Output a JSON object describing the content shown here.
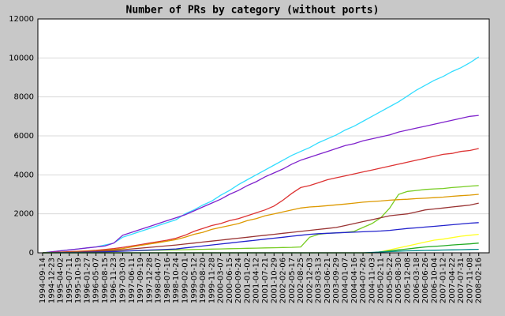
{
  "chart_data": {
    "type": "line",
    "title": "Number of PRs by category (without ports)",
    "categories": [
      "1994-09-14",
      "1994-12-23",
      "1995-04-02",
      "1995-07-11",
      "1995-10-19",
      "1996-01-27",
      "1996-05-07",
      "1996-08-15",
      "1996-11-23",
      "1997-03-03",
      "1997-06-11",
      "1997-09-19",
      "1997-12-28",
      "1998-04-07",
      "1998-07-16",
      "1998-10-24",
      "1999-02-01",
      "1999-05-12",
      "1999-08-20",
      "1999-11-28",
      "2000-03-07",
      "2000-06-15",
      "2000-09-24",
      "2001-01-02",
      "2001-04-12",
      "2001-07-21",
      "2001-10-29",
      "2002-02-06",
      "2002-05-17",
      "2002-08-25",
      "2002-12-03",
      "2003-03-13",
      "2003-06-21",
      "2003-09-29",
      "2004-01-07",
      "2004-04-16",
      "2004-07-26",
      "2004-11-03",
      "2005-02-11",
      "2005-05-22",
      "2005-08-30",
      "2005-12-08",
      "2006-03-18",
      "2006-06-26",
      "2006-10-04",
      "2007-01-12",
      "2007-04-22",
      "2007-07-31",
      "2007-11-08",
      "2008-02-16"
    ],
    "series": [
      {
        "color": "#33ddff",
        "values": [
          0,
          50,
          100,
          150,
          200,
          250,
          300,
          400,
          500,
          800,
          950,
          1100,
          1250,
          1400,
          1550,
          1700,
          2000,
          2200,
          2450,
          2650,
          2950,
          3200,
          3500,
          3750,
          4000,
          4250,
          4500,
          4750,
          5000,
          5200,
          5400,
          5650,
          5850,
          6050,
          6300,
          6500,
          6750,
          7000,
          7250,
          7500,
          7750,
          8050,
          8350,
          8600,
          8850,
          9050,
          9300,
          9500,
          9750,
          10050
        ]
      },
      {
        "color": "#7f22cc",
        "values": [
          0,
          50,
          100,
          150,
          200,
          250,
          300,
          350,
          500,
          900,
          1050,
          1200,
          1350,
          1500,
          1650,
          1800,
          1950,
          2150,
          2350,
          2550,
          2750,
          3000,
          3200,
          3450,
          3650,
          3900,
          4100,
          4300,
          4550,
          4750,
          4900,
          5050,
          5200,
          5350,
          5500,
          5600,
          5750,
          5850,
          5950,
          6050,
          6200,
          6300,
          6400,
          6500,
          6600,
          6700,
          6800,
          6900,
          7000,
          7050
        ]
      },
      {
        "color": "#dd3333",
        "values": [
          0,
          20,
          40,
          60,
          80,
          100,
          130,
          170,
          220,
          280,
          350,
          420,
          500,
          570,
          650,
          750,
          900,
          1100,
          1250,
          1400,
          1500,
          1650,
          1750,
          1900,
          2050,
          2200,
          2400,
          2700,
          3050,
          3350,
          3450,
          3600,
          3750,
          3850,
          3950,
          4050,
          4150,
          4250,
          4350,
          4450,
          4550,
          4650,
          4750,
          4850,
          4950,
          5050,
          5100,
          5200,
          5250,
          5350
        ]
      },
      {
        "color": "#77cc22",
        "values": [
          0,
          10,
          20,
          30,
          40,
          50,
          60,
          70,
          80,
          90,
          100,
          110,
          120,
          130,
          140,
          150,
          160,
          170,
          180,
          190,
          200,
          210,
          220,
          230,
          240,
          250,
          260,
          270,
          280,
          300,
          800,
          950,
          1000,
          1020,
          1050,
          1100,
          1300,
          1500,
          1800,
          2300,
          3000,
          3150,
          3200,
          3250,
          3280,
          3300,
          3350,
          3380,
          3420,
          3450
        ]
      },
      {
        "color": "#dd9900",
        "values": [
          0,
          10,
          20,
          40,
          60,
          80,
          100,
          130,
          170,
          220,
          300,
          380,
          450,
          520,
          600,
          680,
          800,
          950,
          1050,
          1200,
          1300,
          1400,
          1500,
          1650,
          1750,
          1900,
          2000,
          2100,
          2200,
          2300,
          2350,
          2380,
          2420,
          2460,
          2500,
          2550,
          2600,
          2630,
          2660,
          2700,
          2730,
          2750,
          2780,
          2800,
          2830,
          2860,
          2900,
          2930,
          2960,
          3000
        ]
      },
      {
        "color": "#993333",
        "values": [
          0,
          10,
          20,
          30,
          40,
          60,
          80,
          100,
          130,
          160,
          200,
          240,
          280,
          320,
          360,
          400,
          450,
          500,
          550,
          600,
          650,
          700,
          750,
          800,
          850,
          900,
          950,
          1000,
          1050,
          1100,
          1150,
          1200,
          1250,
          1300,
          1400,
          1500,
          1600,
          1700,
          1800,
          1900,
          1950,
          2000,
          2100,
          2200,
          2250,
          2300,
          2350,
          2400,
          2450,
          2550
        ]
      },
      {
        "color": "#2222cc",
        "values": [
          0,
          5,
          10,
          15,
          20,
          30,
          40,
          50,
          60,
          80,
          100,
          120,
          140,
          160,
          180,
          200,
          250,
          300,
          350,
          400,
          450,
          500,
          550,
          600,
          650,
          700,
          750,
          800,
          850,
          900,
          950,
          980,
          1000,
          1020,
          1040,
          1060,
          1080,
          1100,
          1120,
          1150,
          1200,
          1250,
          1280,
          1320,
          1360,
          1400,
          1440,
          1480,
          1520,
          1550
        ]
      },
      {
        "color": "#ffff22",
        "values": [
          0,
          0,
          0,
          0,
          0,
          0,
          0,
          0,
          0,
          0,
          0,
          0,
          0,
          0,
          0,
          0,
          0,
          0,
          0,
          0,
          0,
          0,
          0,
          0,
          0,
          0,
          0,
          0,
          0,
          0,
          0,
          0,
          0,
          0,
          0,
          0,
          0,
          0,
          50,
          150,
          250,
          350,
          450,
          550,
          650,
          700,
          780,
          850,
          900,
          950
        ]
      },
      {
        "color": "#22aa22",
        "values": [
          0,
          0,
          0,
          0,
          0,
          0,
          0,
          0,
          0,
          0,
          0,
          0,
          0,
          0,
          0,
          0,
          0,
          0,
          0,
          0,
          0,
          0,
          0,
          0,
          0,
          0,
          0,
          0,
          0,
          0,
          0,
          0,
          0,
          0,
          0,
          0,
          0,
          0,
          50,
          100,
          150,
          200,
          250,
          300,
          330,
          360,
          400,
          430,
          460,
          500
        ]
      },
      {
        "color": "#008888",
        "values": [
          0,
          0,
          0,
          0,
          0,
          0,
          0,
          0,
          0,
          0,
          0,
          0,
          0,
          0,
          0,
          0,
          0,
          0,
          0,
          0,
          0,
          0,
          0,
          0,
          0,
          0,
          0,
          0,
          0,
          0,
          0,
          0,
          0,
          0,
          0,
          0,
          0,
          20,
          40,
          60,
          80,
          100,
          110,
          120,
          130,
          140,
          150,
          160,
          170,
          180
        ]
      }
    ],
    "ylim": [
      0,
      12000
    ],
    "yticks": [
      0,
      2000,
      4000,
      6000,
      8000,
      10000,
      12000
    ],
    "grid": true
  }
}
